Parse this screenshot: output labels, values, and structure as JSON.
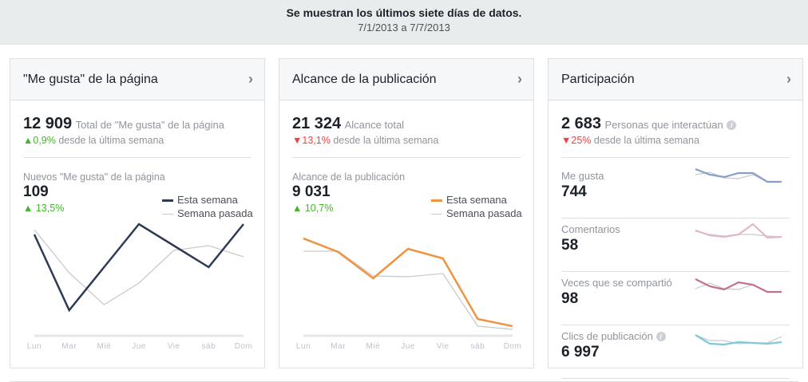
{
  "banner": {
    "title": "Se muestran los últimos siete días de datos.",
    "range": "7/1/2013 a 7/7/2013"
  },
  "colors": {
    "up": "#42b72a",
    "down": "#fa3e3e",
    "likes_line": "#2e3b57",
    "reach_line": "#ef9443",
    "last_week": "#c8cacd"
  },
  "panels": [
    {
      "title": "\"Me gusta\" de la página",
      "chevron": "›",
      "total": "12 909",
      "total_label": "Total de \"Me gusta\" de la página",
      "change_arrow": "▲",
      "change": "0,9%",
      "change_dir": "up",
      "change_label": "desde la última semana",
      "sub_label": "Nuevos \"Me gusta\" de la página",
      "sub_value": "109",
      "sub_arrow": "▲",
      "sub_change": "13,5%",
      "sub_dir": "up"
    },
    {
      "title": "Alcance de la publicación",
      "chevron": "›",
      "total": "21 324",
      "total_label": "Alcance total",
      "change_arrow": "▼",
      "change": "13,1%",
      "change_dir": "down",
      "change_label": "desde la última semana",
      "sub_label": "Alcance de la publicación",
      "sub_value": "9 031",
      "sub_arrow": "▲",
      "sub_change": "10,7%",
      "sub_dir": "up"
    },
    {
      "title": "Participación",
      "chevron": "›",
      "total": "2 683",
      "total_label": "Personas que interactúan",
      "info": "i",
      "change_arrow": "▼",
      "change": "25%",
      "change_dir": "down",
      "change_label": "desde la última semana"
    }
  ],
  "legend": {
    "this_week": "Esta semana",
    "last_week": "Semana pasada"
  },
  "chart_data": [
    {
      "type": "line",
      "categories": [
        "Lun",
        "Mar",
        "Mié",
        "Jue",
        "Vie",
        "sáb",
        "Dom"
      ],
      "series": [
        {
          "name": "Esta semana",
          "values": [
            127,
            32,
            86,
            140,
            113,
            86,
            140
          ]
        },
        {
          "name": "Semana pasada",
          "values": [
            133,
            79,
            39,
            66,
            107,
            113,
            99
          ]
        }
      ],
      "ylim": [
        0,
        145
      ],
      "grid": false
    },
    {
      "type": "line",
      "categories": [
        "Lun",
        "Mar",
        "Mié",
        "Jue",
        "Vie",
        "sáb",
        "Dom"
      ],
      "series": [
        {
          "name": "Esta semana",
          "values": [
            122,
            105,
            72,
            109,
            97,
            21,
            12
          ]
        },
        {
          "name": "Semana pasada",
          "values": [
            106,
            106,
            75,
            74,
            78,
            12,
            8
          ]
        }
      ],
      "ylim": [
        0,
        145
      ],
      "grid": false
    }
  ],
  "engagement": [
    {
      "label": "Me gusta",
      "value": "744",
      "color": "#8b9dc9",
      "this": [
        24,
        17,
        14,
        19,
        19,
        8,
        8
      ],
      "last": [
        17,
        20,
        13,
        12,
        17,
        8,
        8
      ]
    },
    {
      "label": "Comentarios",
      "value": "58",
      "color": "#e4b5c8",
      "this": [
        14,
        8,
        6,
        9,
        22,
        5,
        6
      ],
      "last": [
        13,
        9,
        7,
        9,
        9,
        7,
        6
      ]
    },
    {
      "label": "Veces que se compartió",
      "value": "98",
      "color": "#c0718f",
      "this": [
        20,
        11,
        7,
        16,
        13,
        4,
        4
      ],
      "last": [
        8,
        15,
        8,
        7,
        13,
        4,
        4
      ]
    },
    {
      "label": "Clics de publicación",
      "value": "6 997",
      "info": "i",
      "color": "#7ecad6",
      "this": [
        17,
        6,
        5,
        8,
        7,
        6,
        8
      ],
      "last": [
        17,
        10,
        10,
        6,
        7,
        7,
        15
      ]
    }
  ]
}
